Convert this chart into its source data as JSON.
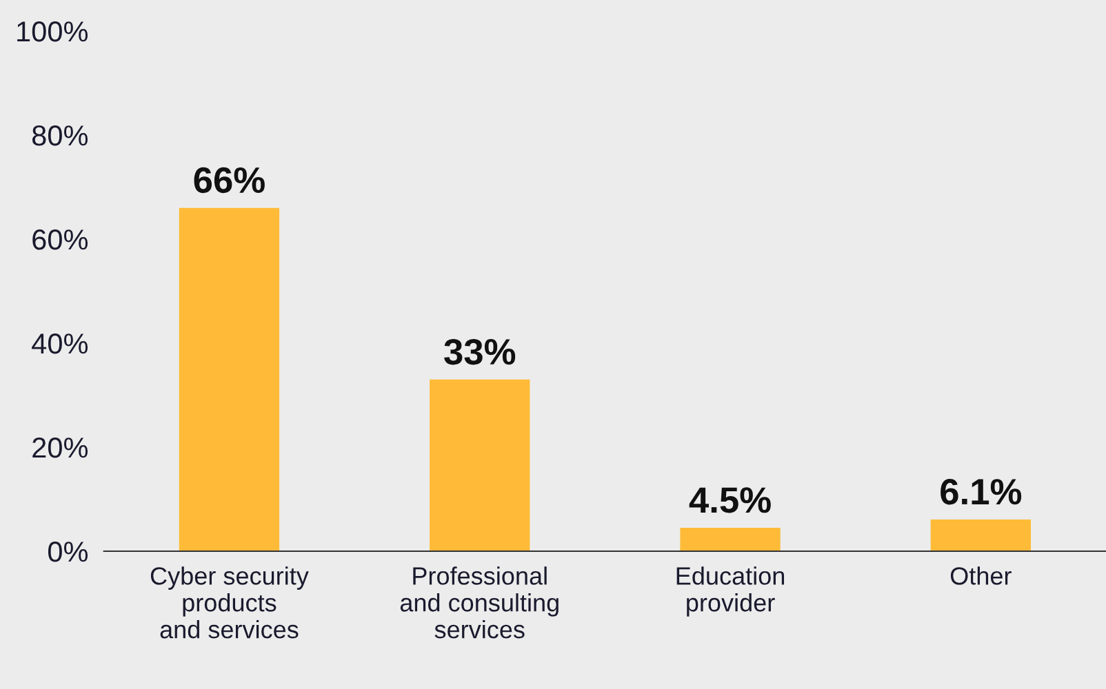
{
  "chart_data": {
    "type": "bar",
    "categories": [
      "Cyber security\nproducts\nand services",
      "Professional\nand consulting\nservices",
      "Education\nprovider",
      "Other"
    ],
    "values": [
      66,
      33,
      4.5,
      6.1
    ],
    "color": "#ffbb38",
    "value_labels": [
      "66%",
      "33%",
      "4.5%",
      "6.1%"
    ],
    "ylim": [
      0,
      100
    ],
    "yticks": [
      {
        "value": 0,
        "label": "0%"
      },
      {
        "value": 20,
        "label": "20%"
      },
      {
        "value": 40,
        "label": "40%"
      },
      {
        "value": 60,
        "label": "60%"
      },
      {
        "value": 80,
        "label": "80%"
      },
      {
        "value": 100,
        "label": "100%"
      }
    ],
    "grid": false,
    "legend": false
  }
}
